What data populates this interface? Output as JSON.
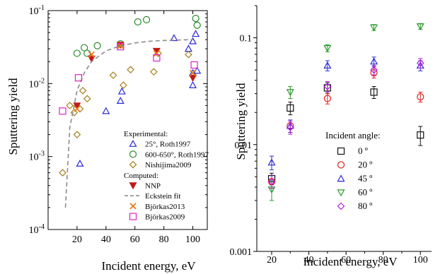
{
  "chart_data": [
    {
      "type": "scatter",
      "title": "",
      "xlabel": "Incident energy, eV",
      "ylabel": "Sputtering yield",
      "xlim": [
        0,
        110
      ],
      "ylim": [
        0.0001,
        0.1
      ],
      "yscale": "log",
      "xticks": [
        "20",
        "40",
        "60",
        "80",
        "100"
      ],
      "yticks": [
        "10-4",
        "10-3",
        "10-2",
        "10-1"
      ],
      "legend_position": "bottom-right",
      "legend_groups": [
        {
          "heading": "Experimental:",
          "series": [
            "25°, Roth1997",
            "600-650°, Roth1997",
            "Nishijima2009"
          ]
        },
        {
          "heading": "Computed:",
          "series": [
            "NNP",
            "Eckstein fit",
            "Björkas2013",
            "Björkas2009"
          ]
        }
      ],
      "series": [
        {
          "name": "25°, Roth1997",
          "marker": "triangle-up-open",
          "color": "#2a2ad8",
          "points": [
            [
              22,
              0.0008
            ],
            [
              40,
              0.0042
            ],
            [
              50,
              0.0058
            ],
            [
              51,
              0.0078
            ],
            [
              100,
              0.0095
            ],
            [
              100,
              0.014
            ],
            [
              103,
              0.015
            ],
            [
              97,
              0.03
            ],
            [
              100,
              0.038
            ],
            [
              102,
              0.048
            ],
            [
              87,
              0.042
            ]
          ]
        },
        {
          "name": "600-650°, Roth1997",
          "marker": "circle-open",
          "color": "#2a8a2a",
          "points": [
            [
              20,
              0.026
            ],
            [
              25,
              0.031
            ],
            [
              27,
              0.026
            ],
            [
              34,
              0.033
            ],
            [
              50,
              0.035
            ],
            [
              62,
              0.07
            ],
            [
              68,
              0.075
            ],
            [
              103,
              0.063
            ],
            [
              102,
              0.078
            ]
          ]
        },
        {
          "name": "Nishijima2009",
          "marker": "diamond-open",
          "color": "#a58020",
          "points": [
            [
              10,
              0.0006
            ],
            [
              15,
              0.005
            ],
            [
              18,
              0.004
            ],
            [
              20,
              0.002
            ],
            [
              22,
              0.0045
            ],
            [
              24,
              0.008
            ],
            [
              27,
              0.0062
            ],
            [
              45,
              0.013
            ],
            [
              52,
              0.0095
            ],
            [
              57,
              0.0155
            ],
            [
              73,
              0.0145
            ],
            [
              76,
              0.026
            ],
            [
              97,
              0.025
            ]
          ]
        },
        {
          "name": "NNP",
          "marker": "triangle-down-filled",
          "color": "#c01818",
          "points": [
            [
              20,
              0.005
            ],
            [
              30,
              0.022
            ],
            [
              50,
              0.034
            ],
            [
              75,
              0.028
            ],
            [
              100,
              0.012
            ]
          ]
        },
        {
          "name": "Eckstein fit",
          "marker": "dashed-line",
          "color": "#8c8c8c",
          "points": [
            [
              12,
              0.0002
            ],
            [
              15,
              0.0025
            ],
            [
              20,
              0.008
            ],
            [
              25,
              0.014
            ],
            [
              30,
              0.02
            ],
            [
              40,
              0.028
            ],
            [
              50,
              0.033
            ],
            [
              60,
              0.036
            ],
            [
              70,
              0.038
            ],
            [
              80,
              0.039
            ],
            [
              90,
              0.0395
            ],
            [
              100,
              0.04
            ]
          ]
        },
        {
          "name": "Björkas2013",
          "marker": "x",
          "color": "#e87a18",
          "points": [
            [
              20,
              0.0045
            ],
            [
              30,
              0.025
            ],
            [
              50,
              0.033
            ],
            [
              75,
              0.026
            ],
            [
              100,
              0.014
            ]
          ]
        },
        {
          "name": "Björkas2009",
          "marker": "square-open",
          "color": "#e020c8",
          "points": [
            [
              10,
              0.0042
            ],
            [
              21,
              0.012
            ],
            [
              50,
              0.032
            ],
            [
              75,
              0.0225
            ],
            [
              101,
              0.018
            ]
          ]
        }
      ]
    },
    {
      "type": "scatter",
      "title": "",
      "xlabel": "Incident energy, eV",
      "ylabel": "Sputtering yield",
      "xlim": [
        12,
        106
      ],
      "ylim": [
        0.001,
        0.2
      ],
      "yscale": "log",
      "xticks": [
        "20",
        "40",
        "60",
        "80",
        "100"
      ],
      "yticks": [
        "0.001",
        "0.01",
        "0.1"
      ],
      "legend_title": "Incident angle:",
      "legend_position": "center-right",
      "series": [
        {
          "name": "0 º",
          "marker": "square-open",
          "color": "#111111",
          "points": [
            [
              20,
              0.0048,
              0.0006
            ],
            [
              30,
              0.022,
              0.003
            ],
            [
              50,
              0.034,
              0.004
            ],
            [
              75,
              0.031,
              0.004
            ],
            [
              100,
              0.0123,
              0.0025
            ]
          ]
        },
        {
          "name": "20 º",
          "marker": "circle-open",
          "color": "#e02020",
          "points": [
            [
              20,
              0.0045,
              0.0006
            ],
            [
              30,
              0.015,
              0.002
            ],
            [
              50,
              0.027,
              0.003
            ],
            [
              75,
              0.047,
              0.005
            ],
            [
              100,
              0.028,
              0.003
            ]
          ]
        },
        {
          "name": "45 º",
          "marker": "triangle-up-open",
          "color": "#2a2ad8",
          "points": [
            [
              20,
              0.0068,
              0.001
            ],
            [
              30,
              0.015,
              0.002
            ],
            [
              50,
              0.055,
              0.006
            ],
            [
              75,
              0.06,
              0.006
            ],
            [
              100,
              0.055,
              0.006
            ]
          ]
        },
        {
          "name": "60 º",
          "marker": "triangle-down-open",
          "color": "#2a9a2a",
          "points": [
            [
              20,
              0.0038,
              0.0008
            ],
            [
              30,
              0.031,
              0.004
            ],
            [
              50,
              0.08,
              0.006
            ],
            [
              75,
              0.125,
              0.008
            ],
            [
              100,
              0.128,
              0.008
            ]
          ]
        },
        {
          "name": "80 º",
          "marker": "diamond-open",
          "color": "#b020d8",
          "points": [
            [
              20,
              0.0045,
              0.0006
            ],
            [
              30,
              0.0145,
              0.002
            ],
            [
              50,
              0.035,
              0.004
            ],
            [
              75,
              0.05,
              0.005
            ],
            [
              100,
              0.058,
              0.006
            ]
          ]
        }
      ]
    }
  ]
}
